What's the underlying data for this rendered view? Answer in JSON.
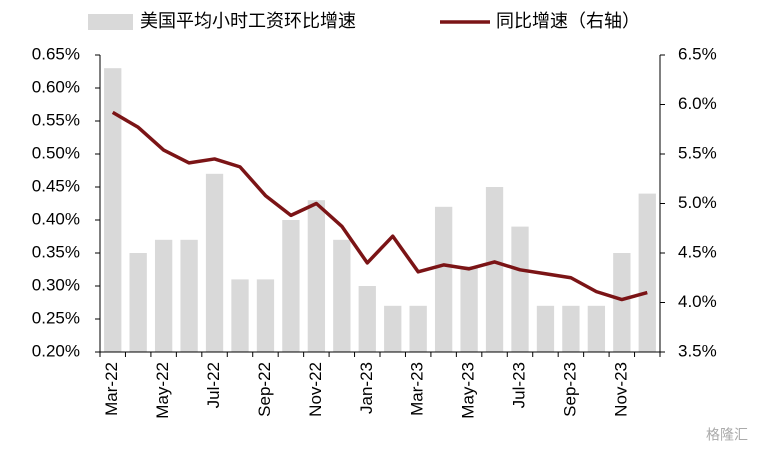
{
  "chart_data": {
    "type": "bar_line",
    "categories": [
      "Mar-22",
      null,
      "May-22",
      null,
      "Jul-22",
      null,
      "Sep-22",
      null,
      "Nov-22",
      null,
      "Jan-23",
      null,
      "Mar-23",
      null,
      "May-23",
      null,
      "Jul-23",
      null,
      "Sep-23",
      null,
      "Nov-23",
      null
    ],
    "series": [
      {
        "name": "美国平均小时工资环比增速",
        "color": "#d9d9d9",
        "type": "bar",
        "values": [
          0.63,
          0.35,
          0.37,
          0.37,
          0.47,
          0.31,
          0.31,
          0.4,
          0.43,
          0.37,
          0.3,
          0.27,
          0.27,
          0.42,
          0.33,
          0.45,
          0.39,
          0.27,
          0.27,
          0.27,
          0.35,
          0.44
        ]
      },
      {
        "name": "同比增速（右轴）",
        "color": "#7b1416",
        "type": "line",
        "axis": "y2",
        "values": [
          5.92,
          5.77,
          5.54,
          5.41,
          5.45,
          5.37,
          5.08,
          4.88,
          5.0,
          4.77,
          4.4,
          4.67,
          4.31,
          4.38,
          4.34,
          4.41,
          4.33,
          4.29,
          4.25,
          4.11,
          4.03,
          4.1
        ]
      }
    ],
    "ylim": [
      0.2,
      0.65
    ],
    "yticks": [
      {
        "value": 0.2,
        "label": "0.20%"
      },
      {
        "value": 0.25,
        "label": "0.25%"
      },
      {
        "value": 0.3,
        "label": "0.30%"
      },
      {
        "value": 0.35,
        "label": "0.35%"
      },
      {
        "value": 0.4,
        "label": "0.40%"
      },
      {
        "value": 0.45,
        "label": "0.45%"
      },
      {
        "value": 0.5,
        "label": "0.50%"
      },
      {
        "value": 0.55,
        "label": "0.55%"
      },
      {
        "value": 0.6,
        "label": "0.60%"
      },
      {
        "value": 0.65,
        "label": "0.65%"
      }
    ],
    "y2lim": [
      3.5,
      6.5
    ],
    "y2ticks": [
      {
        "value": 3.5,
        "label": "3.5%"
      },
      {
        "value": 4.0,
        "label": "4.0%"
      },
      {
        "value": 4.5,
        "label": "4.5%"
      },
      {
        "value": 5.0,
        "label": "5.0%"
      },
      {
        "value": 5.5,
        "label": "5.5%"
      },
      {
        "value": 6.0,
        "label": "6.0%"
      },
      {
        "value": 6.5,
        "label": "6.5%"
      }
    ],
    "legend": "top",
    "watermark": "格隆汇"
  }
}
